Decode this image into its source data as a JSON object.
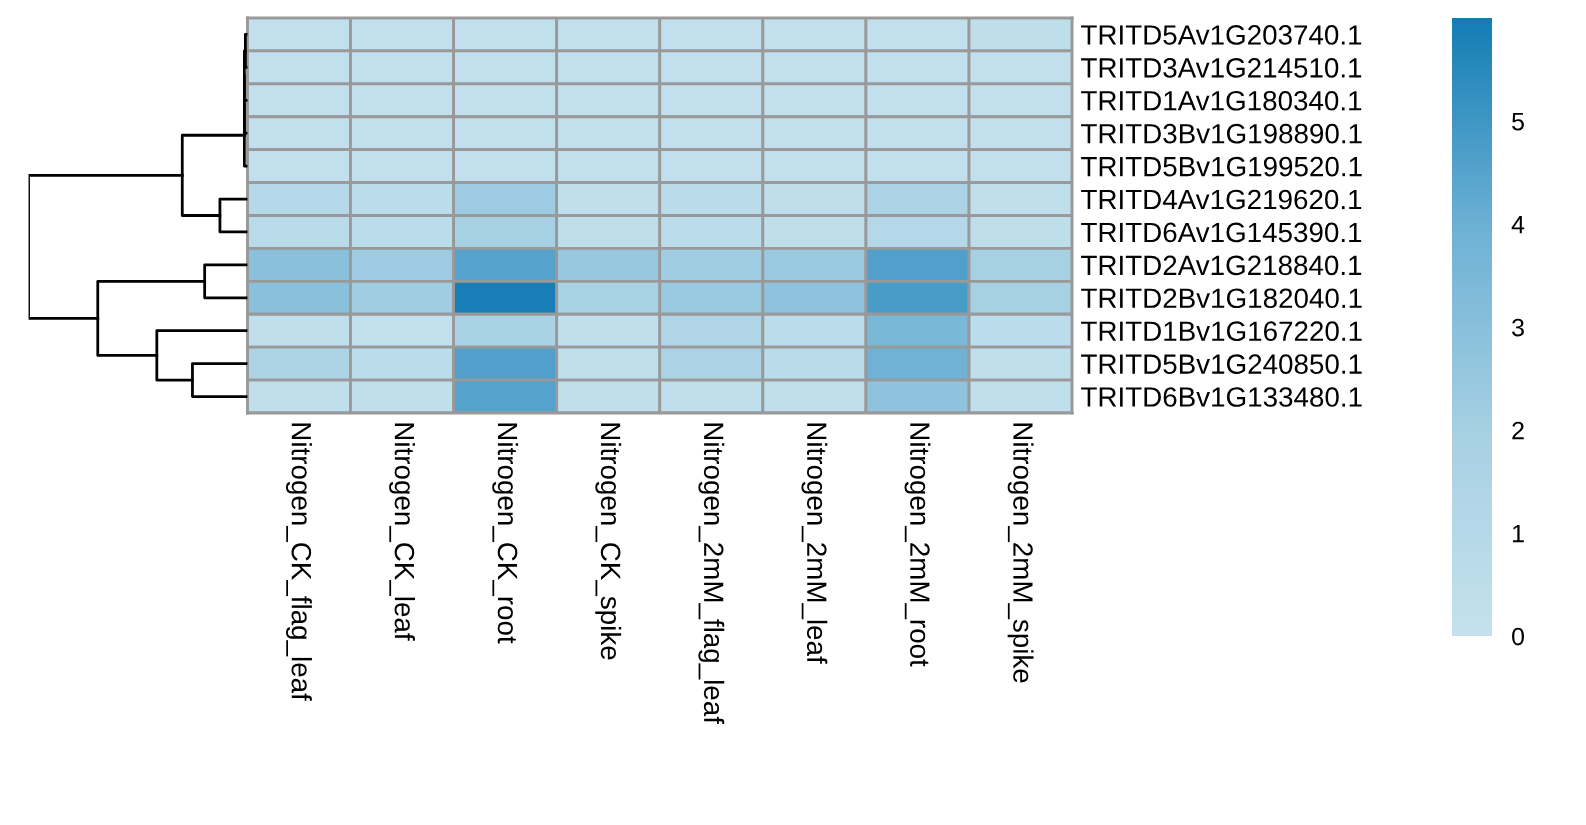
{
  "chart_data": {
    "type": "heatmap",
    "categories": [
      "Nitrogen_CK_flag_leaf",
      "Nitrogen_CK_leaf",
      "Nitrogen_CK_root",
      "Nitrogen_CK_spike",
      "Nitrogen_2mM_flag_leaf",
      "Nitrogen_2mM_leaf",
      "Nitrogen_2mM_root",
      "Nitrogen_2mM_spike"
    ],
    "y_categories": [
      "TRITD5Av1G203740.1",
      "TRITD3Av1G214510.1",
      "TRITD1Av1G180340.1",
      "TRITD3Bv1G198890.1",
      "TRITD5Bv1G199520.1",
      "TRITD4Av1G219620.1",
      "TRITD6Av1G145390.1",
      "TRITD2Av1G218840.1",
      "TRITD2Bv1G182040.1",
      "TRITD1Bv1G167220.1",
      "TRITD5Bv1G240850.1",
      "TRITD6Bv1G133480.1"
    ],
    "cells": [
      [
        0.2,
        0.2,
        0.2,
        0.2,
        0.2,
        0.2,
        0.2,
        0.4
      ],
      [
        0.2,
        0.2,
        0.2,
        0.2,
        0.2,
        0.2,
        0.2,
        0.2
      ],
      [
        0.2,
        0.2,
        0.2,
        0.2,
        0.2,
        0.2,
        0.2,
        0.2
      ],
      [
        0.2,
        0.2,
        0.2,
        0.2,
        0.2,
        0.2,
        0.2,
        0.2
      ],
      [
        0.2,
        0.2,
        0.2,
        0.2,
        0.2,
        0.2,
        0.2,
        0.2
      ],
      [
        1.0,
        0.6,
        2.3,
        0.3,
        0.7,
        0.4,
        1.6,
        0.3
      ],
      [
        0.8,
        0.6,
        2.0,
        0.4,
        0.6,
        0.4,
        1.1,
        0.4
      ],
      [
        3.0,
        2.3,
        4.5,
        2.5,
        2.2,
        2.4,
        4.6,
        1.9
      ],
      [
        3.0,
        2.2,
        5.9,
        1.8,
        2.4,
        2.8,
        4.8,
        1.9
      ],
      [
        0.3,
        0.2,
        1.8,
        0.3,
        1.4,
        0.6,
        3.5,
        0.6
      ],
      [
        1.5,
        0.6,
        4.6,
        0.3,
        1.6,
        0.7,
        3.9,
        0.3
      ],
      [
        0.3,
        0.3,
        4.5,
        0.3,
        0.3,
        0.3,
        2.8,
        0.3
      ]
    ],
    "clim": [
      0,
      6
    ],
    "cticks": [
      0,
      1,
      2,
      3,
      4,
      5
    ]
  }
}
